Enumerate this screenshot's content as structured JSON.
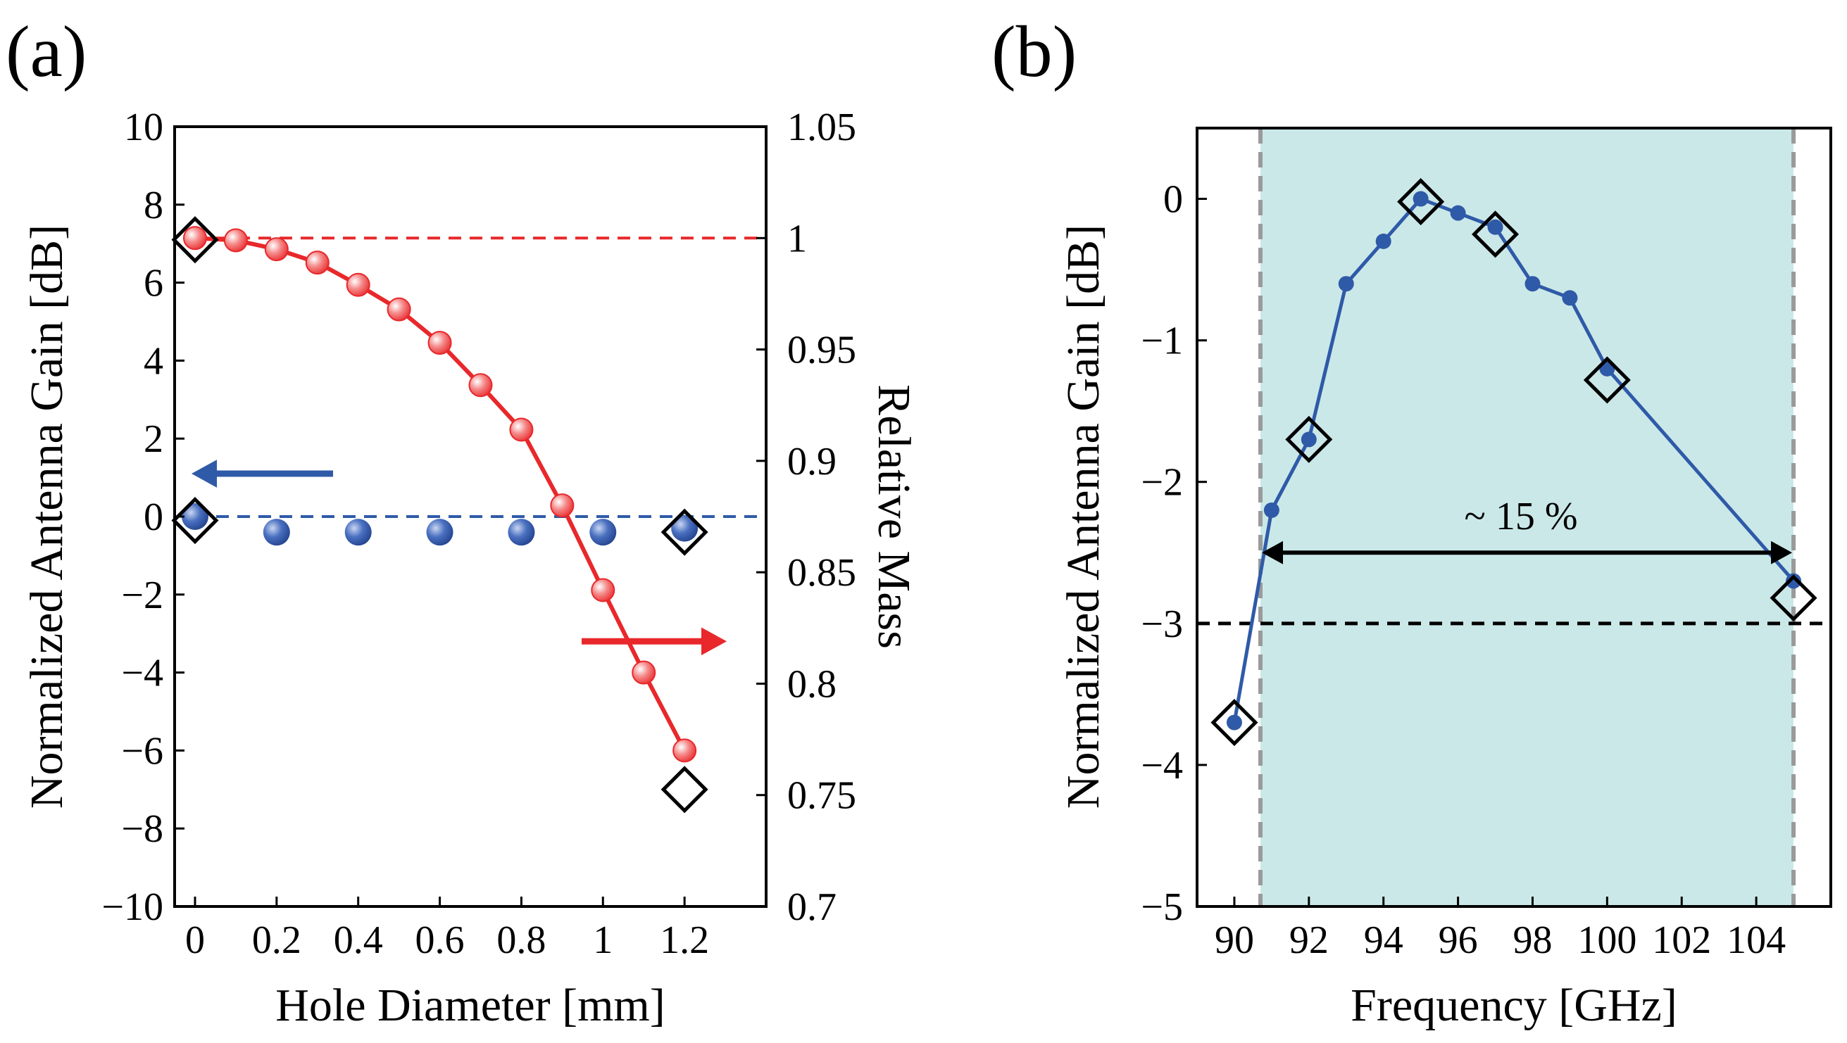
{
  "chart_data": [
    {
      "panel_label": "(a)",
      "type": "scatter",
      "xlabel": "Hole Diameter [mm]",
      "ylabel_left": "Normalized Antenna Gain [dB]",
      "ylabel_right": "Relative Mass",
      "xlim": [
        -0.05,
        1.4
      ],
      "ylim_left": [
        -10,
        10
      ],
      "ylim_right": [
        0.7,
        1.05
      ],
      "xticks": [
        0,
        0.2,
        0.4,
        0.6,
        0.8,
        1,
        1.2
      ],
      "xtick_labels": [
        "0",
        "0.2",
        "0.4",
        "0.6",
        "0.8",
        "1",
        "1.2"
      ],
      "yticks_left": [
        -10,
        -8,
        -6,
        -4,
        -2,
        0,
        2,
        4,
        6,
        8,
        10
      ],
      "ytick_labels_left": [
        "−10",
        "−8",
        "−6",
        "−4",
        "−2",
        "0",
        "2",
        "4",
        "6",
        "8",
        "10"
      ],
      "yticks_right": [
        0.7,
        0.75,
        0.8,
        0.85,
        0.9,
        0.95,
        1,
        1.05
      ],
      "ytick_labels_right": [
        "0.7",
        "0.75",
        "0.8",
        "0.85",
        "0.9",
        "0.95",
        "1",
        "1.05"
      ],
      "series": [
        {
          "axis": "left",
          "color": "#2F5AA8",
          "style": "markers",
          "x": [
            0,
            0.2,
            0.4,
            0.6,
            0.8,
            1,
            1.2
          ],
          "y": [
            0,
            -0.4,
            -0.4,
            -0.4,
            -0.4,
            -0.4,
            -0.3
          ]
        },
        {
          "axis": "right",
          "color": "#E8282B",
          "style": "line-markers",
          "x": [
            0,
            0.1,
            0.2,
            0.3,
            0.4,
            0.5,
            0.6,
            0.7,
            0.8,
            0.9,
            1.0,
            1.1,
            1.2
          ],
          "y": [
            1.0,
            0.999,
            0.995,
            0.989,
            0.979,
            0.968,
            0.953,
            0.934,
            0.914,
            0.88,
            0.842,
            0.805,
            0.77
          ]
        }
      ],
      "reference_lines": [
        {
          "axis": "left",
          "y": 0,
          "color": "#2F5AA8",
          "style": "dashed"
        },
        {
          "axis": "right",
          "y": 1,
          "color": "#E8282B",
          "style": "dashed"
        }
      ],
      "diamond_markers": [
        {
          "axis": "left",
          "x": 0,
          "y": 7.1
        },
        {
          "axis": "left",
          "x": 0,
          "y": -0.1
        },
        {
          "axis": "left",
          "x": 1.2,
          "y": -0.4
        },
        {
          "axis": "left",
          "x": 1.2,
          "y": -7
        }
      ],
      "arrows": [
        {
          "color": "#2F5AA8",
          "direction": "left",
          "points_to": "left axis"
        },
        {
          "color": "#E8282B",
          "direction": "right",
          "points_to": "right axis"
        }
      ]
    },
    {
      "panel_label": "(b)",
      "type": "line",
      "xlabel": "Frequency [GHz]",
      "ylabel": "Normalized Antenna Gain [dB]",
      "xlim": [
        89,
        106
      ],
      "ylim": [
        -5,
        0.5
      ],
      "xticks": [
        90,
        92,
        94,
        96,
        98,
        100,
        102,
        104
      ],
      "xtick_labels": [
        "90",
        "92",
        "94",
        "96",
        "98",
        "100",
        "102",
        "104"
      ],
      "yticks": [
        -5,
        -4,
        -3,
        -2,
        -1,
        0
      ],
      "ytick_labels": [
        "−5",
        "−4",
        "−3",
        "−2",
        "−1",
        "0"
      ],
      "series": [
        {
          "color": "#2F5AA8",
          "x": [
            90,
            91,
            92,
            93,
            94,
            95,
            96,
            97,
            98,
            99,
            100,
            105
          ],
          "y": [
            -3.7,
            -2.2,
            -1.7,
            -0.6,
            -0.3,
            0,
            -0.1,
            -0.2,
            -0.6,
            -0.7,
            -1.2,
            -2.7
          ]
        }
      ],
      "threshold_line": {
        "y": -3,
        "color": "#000000",
        "style": "dashed"
      },
      "band": {
        "x_start": 90.7,
        "x_end": 105,
        "color": "#CBE8E8"
      },
      "band_edges_color": "#9A9A9A",
      "diamond_markers": [
        {
          "x": 90,
          "y": -3.7
        },
        {
          "x": 92,
          "y": -1.7
        },
        {
          "x": 95,
          "y": -0.02
        },
        {
          "x": 97,
          "y": -0.25
        },
        {
          "x": 100,
          "y": -1.28
        },
        {
          "x": 105,
          "y": -2.82
        }
      ],
      "annotation": {
        "text": "~ 15 %",
        "arrow_y": -2.5,
        "x_start": 90.7,
        "x_end": 105
      }
    }
  ]
}
